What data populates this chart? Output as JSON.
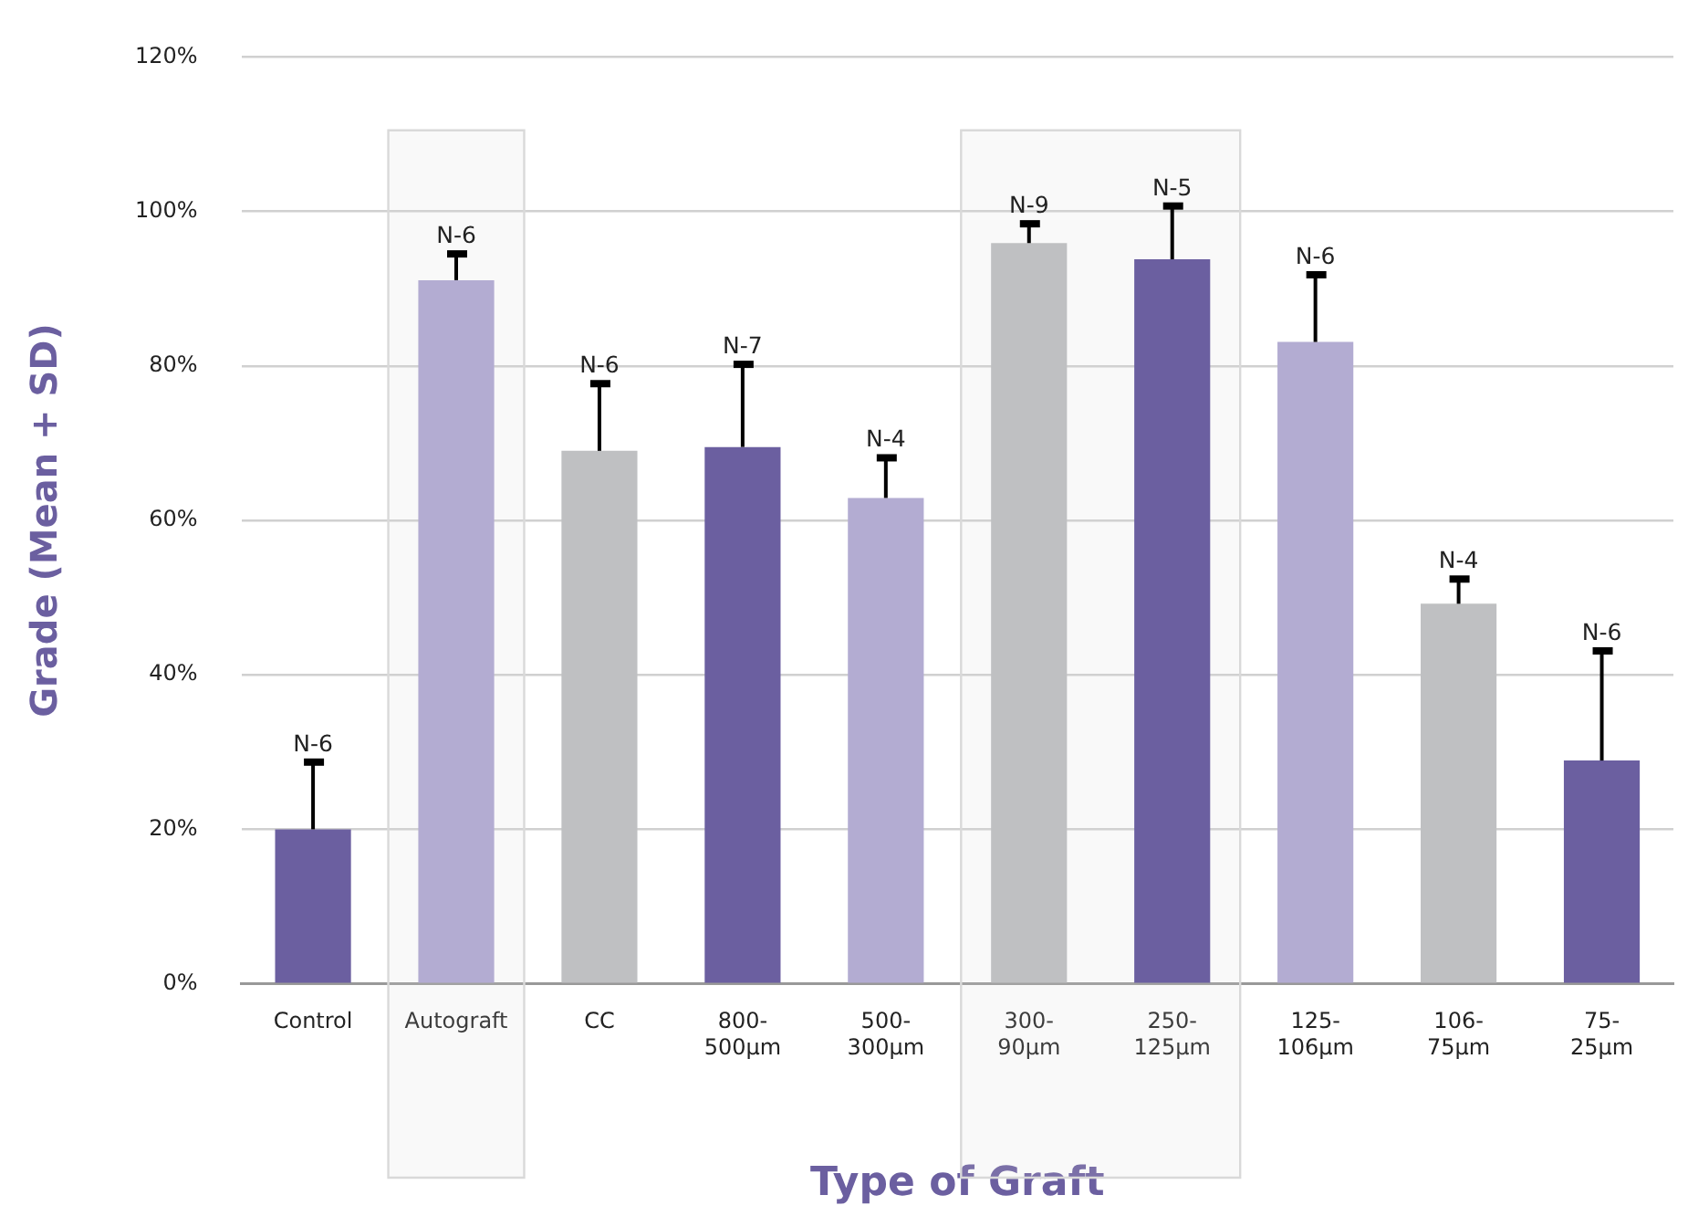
{
  "chart_data": {
    "type": "bar",
    "xlabel": "Type of Graft",
    "ylabel": "Grade (Mean + SD)",
    "categories": [
      "Control",
      "Autograft",
      "CC",
      "800-500µm",
      "500-300µm",
      "300-90µm",
      "250-125µm",
      "125-106µm",
      "106-75µm",
      "75-25µm"
    ],
    "values": [
      20,
      91.1,
      69,
      69.5,
      62.9,
      95.9,
      93.8,
      83.1,
      49.2,
      28.9
    ],
    "colors": [
      "#6b5fa0",
      "#b3acd2",
      "#bfc0c2",
      "#6b5fa0",
      "#b3acd2",
      "#bfc0c2",
      "#6b5fa0",
      "#b3acd2",
      "#bfc0c2",
      "#6b5fa0"
    ],
    "errors": [
      [
        20,
        28.7
      ],
      [
        91.1,
        94.5
      ],
      [
        69,
        77.7
      ],
      [
        69.5,
        80.2
      ],
      [
        62.9,
        68.1
      ],
      [
        95.9,
        98.4
      ],
      [
        93.8,
        100.7
      ],
      [
        83.1,
        91.8
      ],
      [
        49.2,
        52.4
      ],
      [
        28.9,
        43.1
      ]
    ],
    "annotations": [
      {
        "text": "N-6",
        "x": "Control",
        "y": 28.7
      },
      {
        "text": "N-6",
        "x": "Autograft",
        "y": 94.5
      },
      {
        "text": "N-6",
        "x": "CC",
        "y": 77.7
      },
      {
        "text": "N-7",
        "x": "800-500µm",
        "y": 80.2
      },
      {
        "text": "N-4",
        "x": "500-300µm",
        "y": 68.1
      },
      {
        "text": "N-9",
        "x": "300-90µm",
        "y": 98.4
      },
      {
        "text": "N-5",
        "x": "250-125µm",
        "y": 100.7
      },
      {
        "text": "N-6",
        "x": "125-106µm",
        "y": 91.8
      },
      {
        "text": "N-4",
        "x": "106-75µm",
        "y": 52.4
      },
      {
        "text": "N-6",
        "x": "75-25µm",
        "y": 43.1
      }
    ],
    "ylim": [
      0,
      120
    ],
    "yticks": [
      {
        "value": 0,
        "label": "0%"
      },
      {
        "value": 20,
        "label": "20%"
      },
      {
        "value": 40,
        "label": "40%"
      },
      {
        "value": 60,
        "label": "60%"
      },
      {
        "value": 80,
        "label": "80%"
      },
      {
        "value": 100,
        "label": "100%"
      },
      {
        "value": 120,
        "label": "120%"
      }
    ],
    "bands": [
      {
        "axis": "x",
        "from": "Autograft",
        "to": "Autograft",
        "color": "#d9d9d9"
      },
      {
        "axis": "x",
        "from": "300-90µm",
        "to": "250-125µm",
        "color": "#d9d9d9"
      }
    ],
    "grid": "y",
    "legend": false
  }
}
